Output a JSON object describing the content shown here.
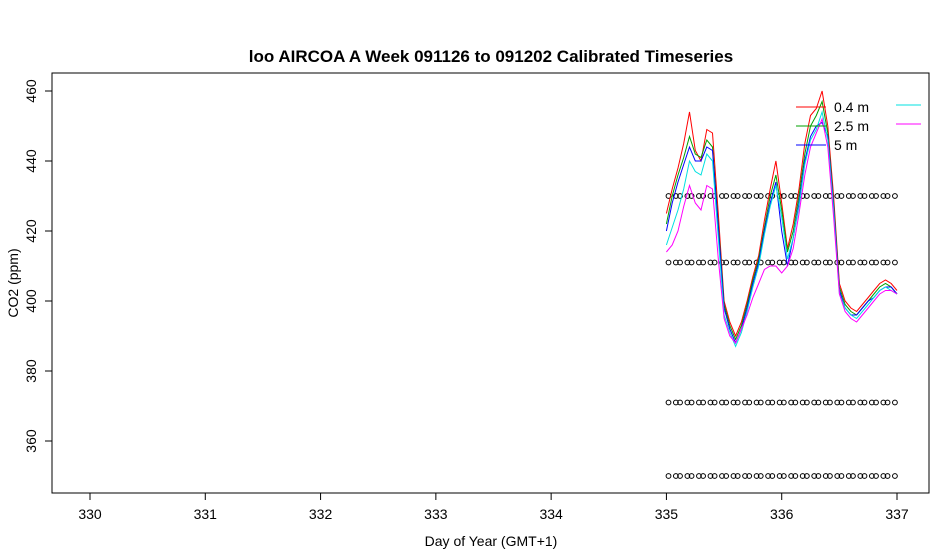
{
  "chart_data": {
    "type": "line",
    "title": "loo AIRCOA A  Week 091126 to 091202  Calibrated Timeseries",
    "xlabel": "Day of Year (GMT+1)",
    "ylabel": "CO2 (ppm)",
    "xlim": [
      330,
      337
    ],
    "ylim": [
      345,
      463
    ],
    "x_ticks": [
      "330",
      "331",
      "332",
      "333",
      "334",
      "335",
      "336",
      "337"
    ],
    "y_ticks": [
      "360",
      "380",
      "400",
      "420",
      "440",
      "460"
    ],
    "legend_position": "top-right",
    "grid": false,
    "series": [
      {
        "name": "0.4 m",
        "color": "#ff0000",
        "x": [
          335.0,
          335.05,
          335.1,
          335.15,
          335.2,
          335.25,
          335.3,
          335.35,
          335.4,
          335.45,
          335.5,
          335.55,
          335.6,
          335.65,
          335.7,
          335.75,
          335.8,
          335.85,
          335.9,
          335.95,
          336.0,
          336.05,
          336.1,
          336.15,
          336.2,
          336.25,
          336.3,
          336.35,
          336.4,
          336.45,
          336.5,
          336.55,
          336.6,
          336.65,
          336.7,
          336.75,
          336.8,
          336.85,
          336.9,
          336.95,
          337.0
        ],
        "y": [
          425,
          432,
          438,
          445,
          454,
          443,
          440,
          449,
          448,
          425,
          400,
          394,
          390,
          394,
          400,
          407,
          413,
          423,
          432,
          440,
          428,
          415,
          422,
          432,
          445,
          453,
          455,
          460,
          450,
          430,
          405,
          400,
          398,
          397,
          399,
          401,
          403,
          405,
          406,
          405,
          403
        ]
      },
      {
        "name": "2.5 m",
        "color": "#00a000",
        "x": [
          335.0,
          335.05,
          335.1,
          335.15,
          335.2,
          335.25,
          335.3,
          335.35,
          335.4,
          335.45,
          335.5,
          335.55,
          335.6,
          335.65,
          335.7,
          335.75,
          335.8,
          335.85,
          335.9,
          335.95,
          336.0,
          336.05,
          336.1,
          336.15,
          336.2,
          336.25,
          336.3,
          336.35,
          336.4,
          336.45,
          336.5,
          336.55,
          336.6,
          336.65,
          336.7,
          336.75,
          336.8,
          336.85,
          336.9,
          336.95,
          337.0
        ],
        "y": [
          422,
          430,
          436,
          441,
          447,
          442,
          441,
          446,
          444,
          422,
          399,
          393,
          389,
          393,
          399,
          406,
          412,
          421,
          430,
          436,
          426,
          414,
          420,
          430,
          442,
          450,
          453,
          457,
          448,
          428,
          404,
          399,
          397,
          396,
          398,
          400,
          402,
          404,
          405,
          404,
          402
        ]
      },
      {
        "name": "5 m",
        "color": "#0000ff",
        "x": [
          335.0,
          335.05,
          335.1,
          335.15,
          335.2,
          335.25,
          335.3,
          335.35,
          335.4,
          335.45,
          335.5,
          335.55,
          335.6,
          335.65,
          335.7,
          335.75,
          335.8,
          335.85,
          335.9,
          335.95,
          336.0,
          336.05,
          336.1,
          336.15,
          336.2,
          336.25,
          336.3,
          336.35,
          336.4,
          336.45,
          336.5,
          336.55,
          336.6,
          336.65,
          336.7,
          336.75,
          336.8,
          336.85,
          336.9,
          336.95,
          337.0
        ],
        "y": [
          420,
          428,
          434,
          439,
          444,
          440,
          440,
          444,
          443,
          421,
          398,
          392,
          388,
          392,
          398,
          405,
          411,
          420,
          428,
          434,
          420,
          410,
          418,
          428,
          440,
          447,
          450,
          451,
          447,
          427,
          403,
          398,
          396,
          396,
          398,
          400,
          401,
          403,
          404,
          404,
          402
        ]
      },
      {
        "name": "",
        "color": "#00e0e0",
        "x": [
          335.0,
          335.05,
          335.1,
          335.15,
          335.2,
          335.25,
          335.3,
          335.35,
          335.4,
          335.45,
          335.5,
          335.55,
          335.6,
          335.65,
          335.7,
          335.75,
          335.8,
          335.85,
          335.9,
          335.95,
          336.0,
          336.05,
          336.1,
          336.15,
          336.2,
          336.25,
          336.3,
          336.35,
          336.4,
          336.45,
          336.5,
          336.55,
          336.6,
          336.65,
          336.7,
          336.75,
          336.8,
          336.85,
          336.9,
          336.95,
          337.0
        ],
        "y": [
          416,
          421,
          426,
          432,
          440,
          437,
          436,
          442,
          440,
          418,
          396,
          391,
          387,
          391,
          397,
          404,
          410,
          419,
          427,
          433,
          424,
          412,
          418,
          427,
          439,
          446,
          449,
          454,
          446,
          426,
          402,
          398,
          396,
          395,
          397,
          399,
          401,
          403,
          404,
          403,
          402
        ]
      },
      {
        "name": "",
        "color": "#ff00ff",
        "x": [
          335.0,
          335.05,
          335.1,
          335.15,
          335.2,
          335.25,
          335.3,
          335.35,
          335.4,
          335.45,
          335.5,
          335.55,
          335.6,
          335.65,
          335.7,
          335.75,
          335.8,
          335.85,
          335.9,
          335.95,
          336.0,
          336.05,
          336.1,
          336.15,
          336.2,
          336.25,
          336.3,
          336.35,
          336.4,
          336.45,
          336.5,
          336.55,
          336.6,
          336.65,
          336.7,
          336.75,
          336.8,
          336.85,
          336.9,
          336.95,
          337.0
        ],
        "y": [
          414,
          416,
          420,
          427,
          433,
          428,
          426,
          433,
          432,
          412,
          395,
          390,
          388,
          392,
          396,
          401,
          405,
          409,
          410,
          410,
          408,
          410,
          415,
          425,
          436,
          444,
          448,
          452,
          444,
          424,
          402,
          397,
          395,
          394,
          396,
          398,
          400,
          402,
          403,
          403,
          402
        ]
      }
    ],
    "markers": {
      "symbol": "open-circle",
      "levels": [
        430,
        411,
        371,
        350
      ],
      "x": [
        335.0,
        335.1,
        335.2,
        335.3,
        335.4,
        335.5,
        335.6,
        335.7,
        335.8,
        335.9,
        336.0,
        336.1,
        336.2,
        336.3,
        336.4,
        336.5,
        336.6,
        336.7,
        336.8,
        336.9,
        337.0
      ]
    }
  }
}
